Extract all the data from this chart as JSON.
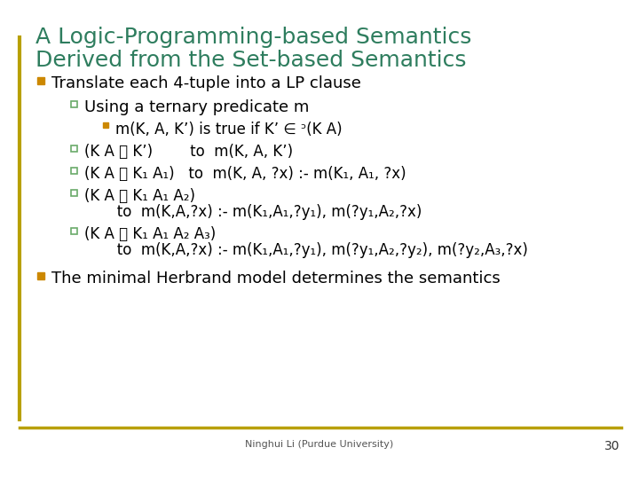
{
  "title_line1": "A Logic-Programming-based Semantics",
  "title_line2": "Derived from the Set-based Semantics",
  "title_color": "#2E7D5E",
  "bg_color": "#FFFFFF",
  "border_color": "#B8A000",
  "bullet_color_orange": "#CC8800",
  "bullet_color_green": "#6AAA6A",
  "body_color": "#000000",
  "footer_text": "Ninghui Li (Purdue University)",
  "page_number": "30",
  "title_fontsize": 18,
  "body_fontsize": 13,
  "small_fontsize": 12
}
